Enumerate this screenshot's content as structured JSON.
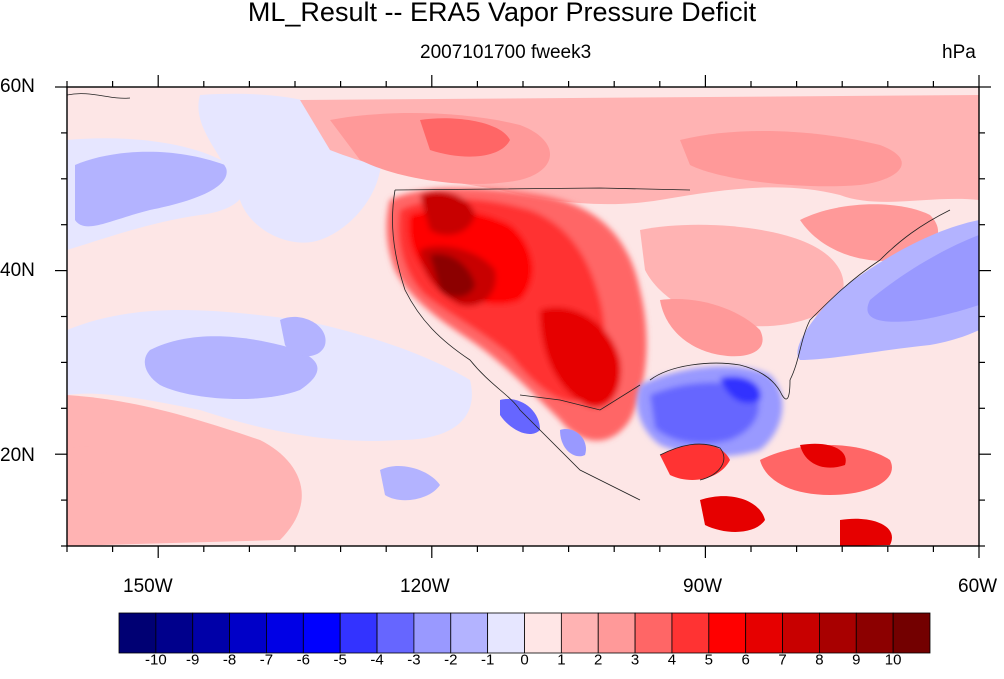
{
  "title": "ML_Result -- ERA5 Vapor Pressure Deficit",
  "subtitle_center": "2007101700 fweek3",
  "subtitle_right": "hPa",
  "map": {
    "lon_range": [
      -160,
      -60
    ],
    "lat_range": [
      10,
      60
    ],
    "lat_ticks": [
      {
        "value": 60,
        "label": "60N"
      },
      {
        "value": 40,
        "label": "40N"
      },
      {
        "value": 20,
        "label": "20N"
      }
    ],
    "lon_ticks": [
      {
        "value": -150,
        "label": "150W"
      },
      {
        "value": -120,
        "label": "120W"
      },
      {
        "value": -90,
        "label": "90W"
      },
      {
        "value": -60,
        "label": "60W"
      }
    ],
    "colors": {
      "background_neutral": "#fde6e6",
      "ocean_negative": "#e6e6ff",
      "west_us_max": "#8c0000"
    }
  },
  "colorbar": {
    "labels": [
      "-10",
      "-9",
      "-8",
      "-7",
      "-6",
      "-5",
      "-4",
      "-3",
      "-2",
      "-1",
      "0",
      "1",
      "2",
      "3",
      "4",
      "5",
      "6",
      "7",
      "8",
      "9",
      "10"
    ],
    "colors": [
      "#000073",
      "#00008c",
      "#0000a8",
      "#0000c8",
      "#0000e6",
      "#0000ff",
      "#3333ff",
      "#6666ff",
      "#9999ff",
      "#b3b3ff",
      "#e6e6ff",
      "#ffe6e6",
      "#ffb3b3",
      "#ff9999",
      "#ff6666",
      "#ff3333",
      "#ff0000",
      "#e60000",
      "#c80000",
      "#a80000",
      "#8c0000",
      "#730000"
    ]
  }
}
